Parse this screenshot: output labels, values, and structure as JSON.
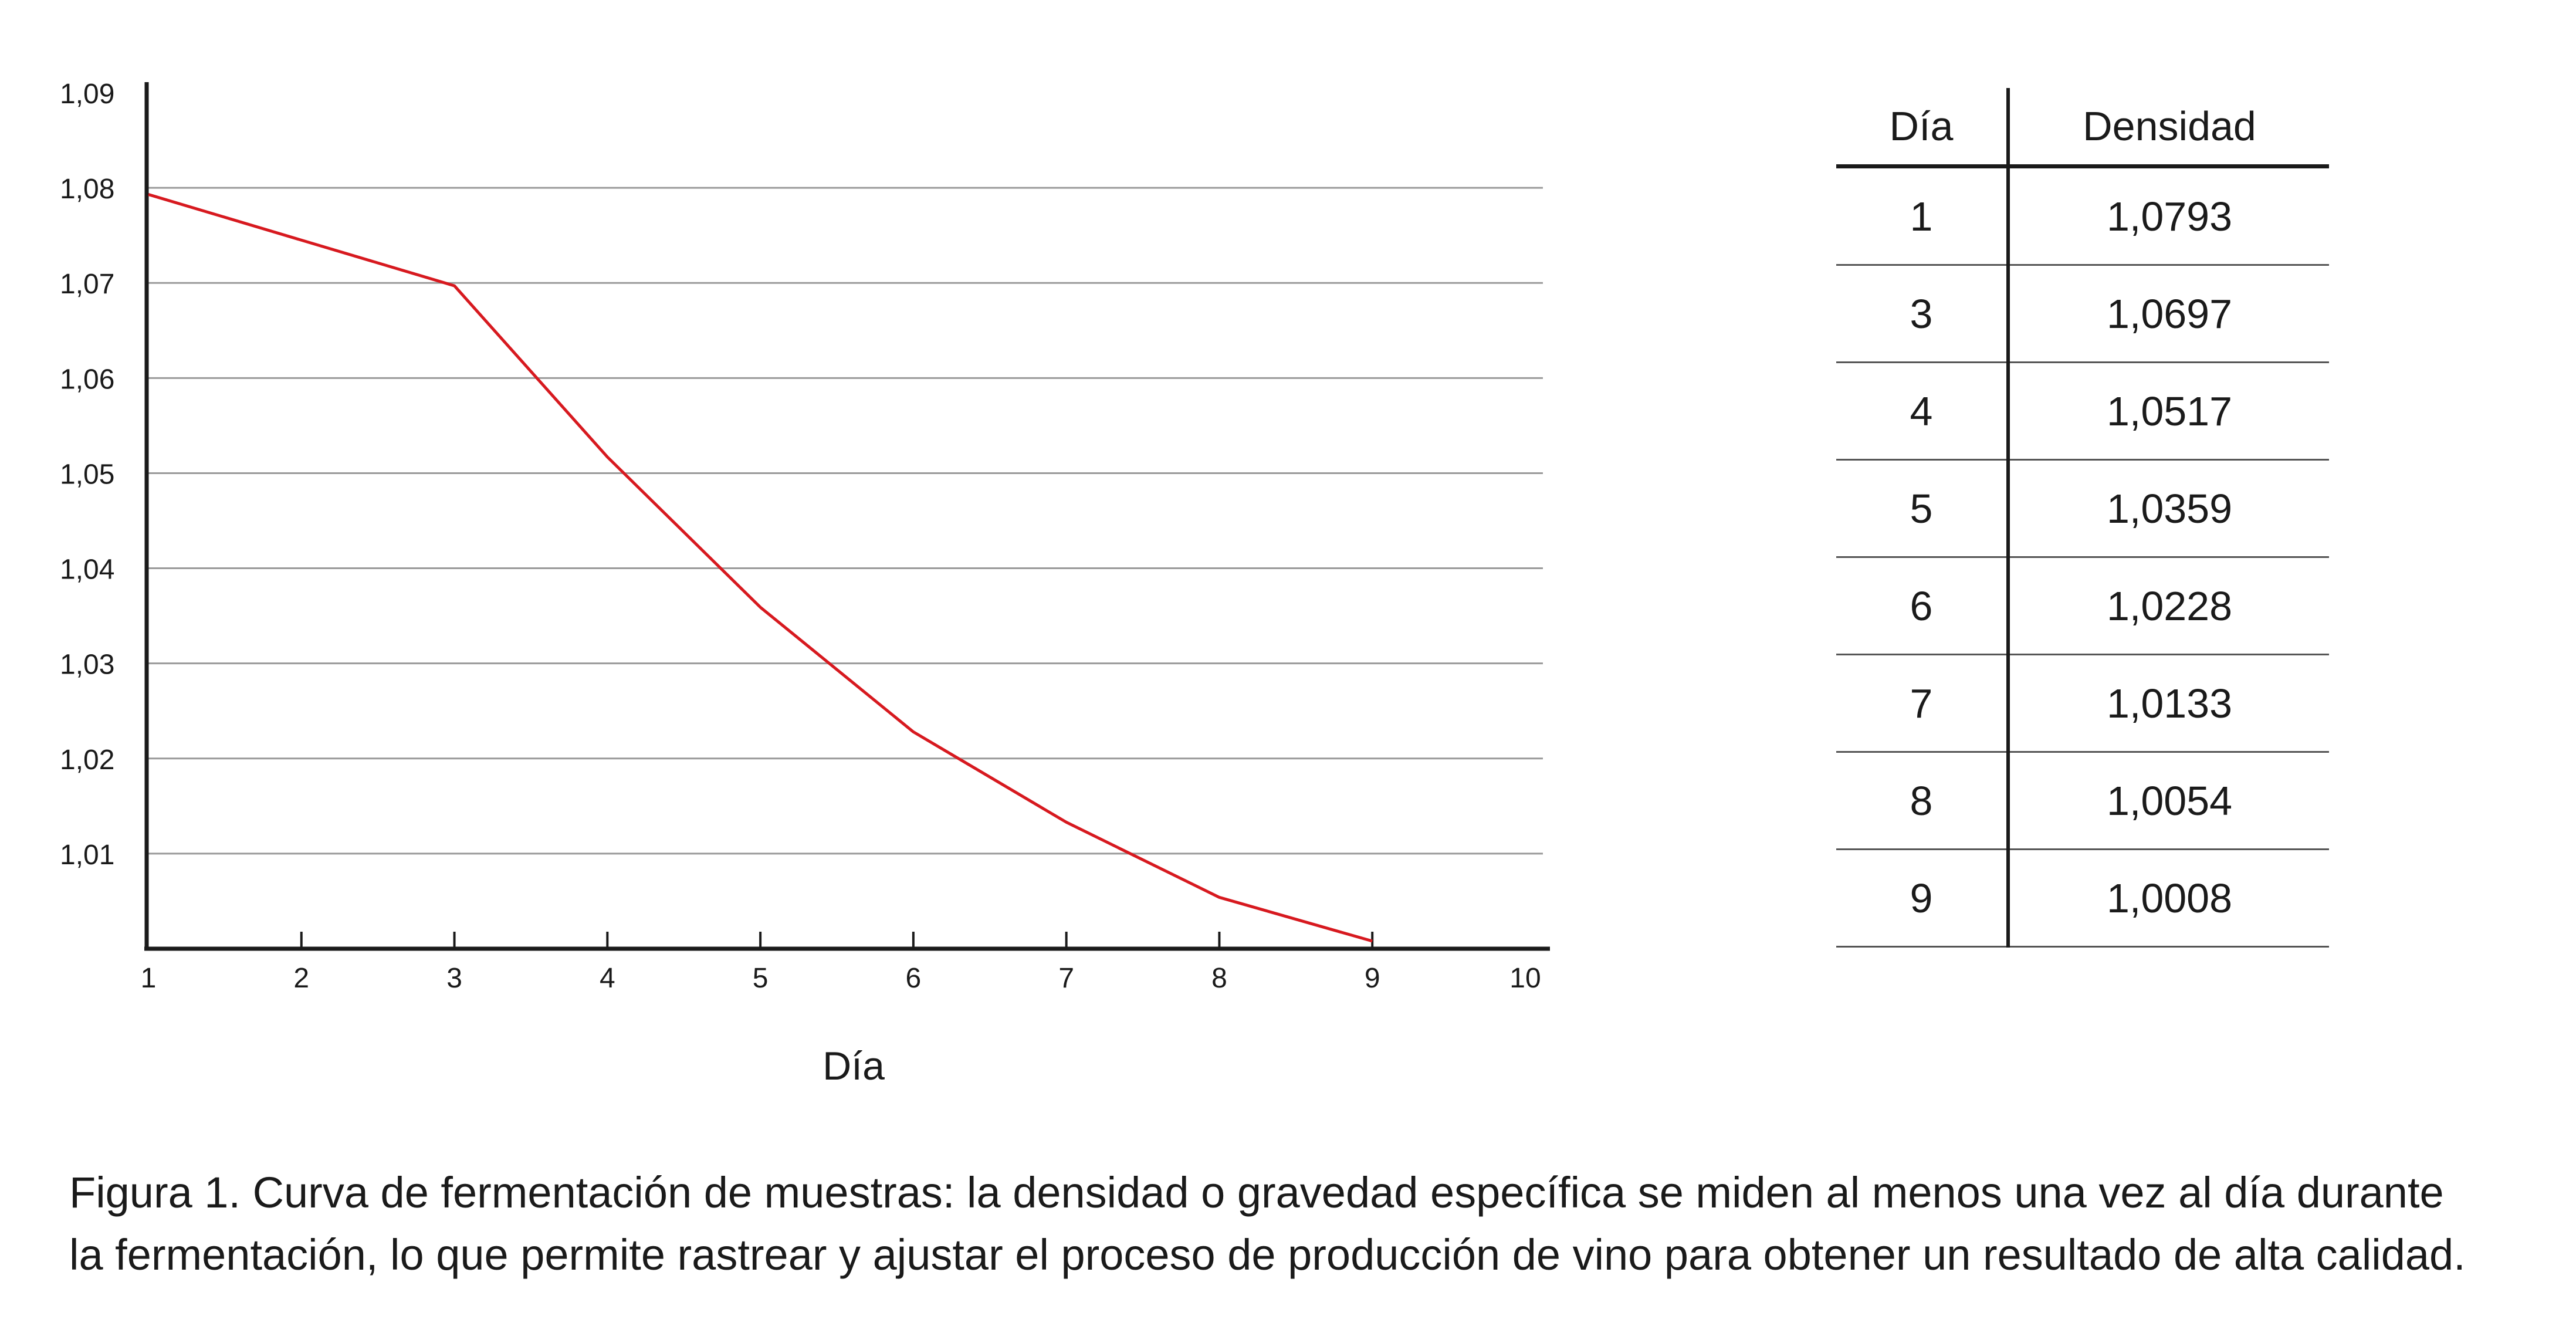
{
  "chart_data": {
    "type": "line",
    "x": [
      1,
      3,
      4,
      5,
      6,
      7,
      8,
      9
    ],
    "y": [
      1.0793,
      1.0697,
      1.0517,
      1.0359,
      1.0228,
      1.0133,
      1.0054,
      1.0008
    ],
    "xlabel": "Día",
    "ylabel": "",
    "xlim": [
      1,
      10
    ],
    "ylim": [
      1.0,
      1.09
    ],
    "x_ticks": [
      "1",
      "2",
      "3",
      "4",
      "5",
      "6",
      "7",
      "8",
      "9",
      "10"
    ],
    "y_ticks": [
      "1,01",
      "1,02",
      "1,03",
      "1,04",
      "1,05",
      "1,06",
      "1,07",
      "1,08",
      "1,09"
    ],
    "grid": "horizontal",
    "line_color": "#d7191f"
  },
  "table": {
    "headers": [
      "Día",
      "Densidad"
    ],
    "rows": [
      [
        "1",
        "1,0793"
      ],
      [
        "3",
        "1,0697"
      ],
      [
        "4",
        "1,0517"
      ],
      [
        "5",
        "1,0359"
      ],
      [
        "6",
        "1,0228"
      ],
      [
        "7",
        "1,0133"
      ],
      [
        "8",
        "1,0054"
      ],
      [
        "9",
        "1,0008"
      ]
    ]
  },
  "caption": {
    "line1": "Figura 1. Curva de fermentación de muestras: la densidad o gravedad específica se miden al menos una vez al día durante",
    "line2": "la fermentación, lo que permite rastrear y ajustar el proceso de producción de vino para obtener un resultado de alta calidad."
  }
}
